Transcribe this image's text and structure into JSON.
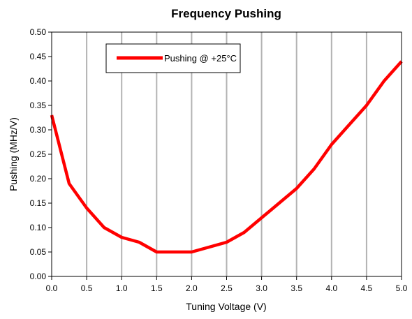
{
  "chart_data": {
    "type": "line",
    "title": "Frequency Pushing",
    "xlabel": "Tuning Voltage (V)",
    "ylabel": "Pushing (MHz/V)",
    "xlim": [
      0.0,
      5.0
    ],
    "ylim": [
      0.0,
      0.5
    ],
    "x_ticks": [
      "0.0",
      "0.5",
      "1.0",
      "1.5",
      "2.0",
      "2.5",
      "3.0",
      "3.5",
      "4.0",
      "4.5",
      "5.0"
    ],
    "y_ticks": [
      "0.00",
      "0.05",
      "0.10",
      "0.15",
      "0.20",
      "0.25",
      "0.30",
      "0.35",
      "0.40",
      "0.45",
      "0.50"
    ],
    "grid": "vertical",
    "legend_position": "top-left",
    "series": [
      {
        "name": "Pushing @ +25°C",
        "color": "#ff0000",
        "x": [
          0.0,
          0.25,
          0.5,
          0.75,
          1.0,
          1.25,
          1.5,
          1.75,
          2.0,
          2.25,
          2.5,
          2.75,
          3.0,
          3.25,
          3.5,
          3.75,
          4.0,
          4.25,
          4.5,
          4.75,
          5.0
        ],
        "y": [
          0.33,
          0.19,
          0.14,
          0.1,
          0.08,
          0.07,
          0.05,
          0.05,
          0.05,
          0.06,
          0.07,
          0.09,
          0.12,
          0.15,
          0.18,
          0.22,
          0.27,
          0.31,
          0.35,
          0.4,
          0.44
        ]
      }
    ]
  }
}
